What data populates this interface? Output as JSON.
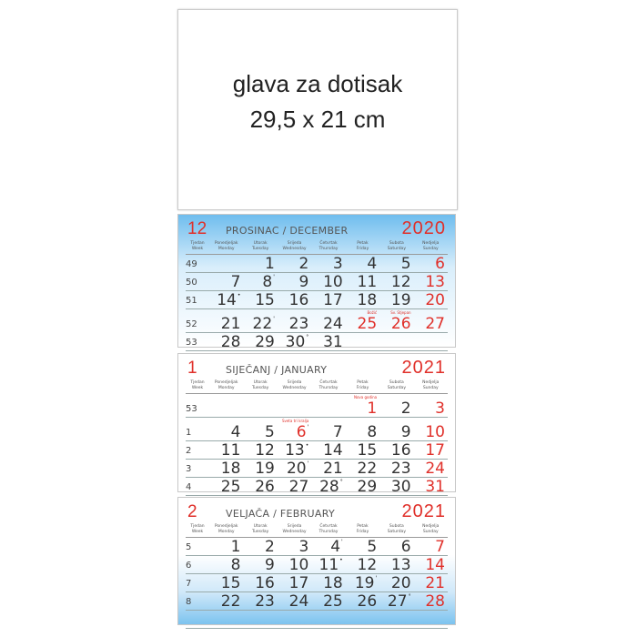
{
  "header_box": {
    "line1": "glava za dotisak",
    "line2": "29,5 x 21 cm"
  },
  "day_names": [
    [
      "Tjedan",
      "Week"
    ],
    [
      "Ponedjeljak",
      "Monday"
    ],
    [
      "Utorak",
      "Tuesday"
    ],
    [
      "Srijeda",
      "Wednesday"
    ],
    [
      "Četvrtak",
      "Thursday"
    ],
    [
      "Petak",
      "Friday"
    ],
    [
      "Subota",
      "Saturday"
    ],
    [
      "Nedjelja",
      "Sunday"
    ]
  ],
  "colors": {
    "red": "#e0302a",
    "blue": "#6fbdee",
    "text": "#333333"
  },
  "months": [
    {
      "number": "12",
      "name": "PROSINAC / DECEMBER",
      "year": "2020",
      "weeks": [
        {
          "week": "49",
          "days": [
            "",
            "1",
            "2",
            "3",
            "4",
            "5",
            "6"
          ]
        },
        {
          "week": "50",
          "days": [
            "7",
            "8",
            "9",
            "10",
            "11",
            "12",
            "13"
          ]
        },
        {
          "week": "51",
          "days": [
            "14",
            "15",
            "16",
            "17",
            "18",
            "19",
            "20"
          ]
        },
        {
          "week": "52",
          "days": [
            "21",
            "22",
            "23",
            "24",
            "25",
            "26",
            "27"
          ]
        },
        {
          "week": "53",
          "days": [
            "28",
            "29",
            "30",
            "31",
            "",
            "",
            ""
          ]
        }
      ],
      "red": [
        "25",
        "26"
      ],
      "holidays": {
        "25": "Božić",
        "26": "Sv. Stjepan"
      },
      "moon_marks": {
        "8": "'",
        "14": "•",
        "22": "'",
        "30": "°"
      }
    },
    {
      "number": "1",
      "name": "SIJEČANJ / JANUARY",
      "year": "2021",
      "weeks": [
        {
          "week": "53",
          "days": [
            "",
            "",
            "",
            "",
            "1",
            "2",
            "3"
          ]
        },
        {
          "week": "1",
          "days": [
            "4",
            "5",
            "6",
            "7",
            "8",
            "9",
            "10"
          ]
        },
        {
          "week": "2",
          "days": [
            "11",
            "12",
            "13",
            "14",
            "15",
            "16",
            "17"
          ]
        },
        {
          "week": "3",
          "days": [
            "18",
            "19",
            "20",
            "21",
            "22",
            "23",
            "24"
          ]
        },
        {
          "week": "4",
          "days": [
            "25",
            "26",
            "27",
            "28",
            "29",
            "30",
            "31"
          ]
        }
      ],
      "red": [
        "1",
        "6"
      ],
      "holidays": {
        "1": "Nova godina",
        "6": "Sveta tri kralja"
      },
      "moon_marks": {
        "6": "'",
        "13": "•",
        "20": "'",
        "28": "°"
      }
    },
    {
      "number": "2",
      "name": "VELJAČA / FEBRUARY",
      "year": "2021",
      "weeks": [
        {
          "week": "5",
          "days": [
            "1",
            "2",
            "3",
            "4",
            "5",
            "6",
            "7"
          ]
        },
        {
          "week": "6",
          "days": [
            "8",
            "9",
            "10",
            "11",
            "12",
            "13",
            "14"
          ]
        },
        {
          "week": "7",
          "days": [
            "15",
            "16",
            "17",
            "18",
            "19",
            "20",
            "21"
          ]
        },
        {
          "week": "8",
          "days": [
            "22",
            "23",
            "24",
            "25",
            "26",
            "27",
            "28"
          ]
        },
        {
          "week": "",
          "days": [
            "",
            "",
            "",
            "",
            "",
            "",
            ""
          ]
        }
      ],
      "red": [],
      "holidays": {},
      "moon_marks": {
        "4": "'",
        "11": "•",
        "19": "'",
        "27": "°"
      }
    }
  ]
}
